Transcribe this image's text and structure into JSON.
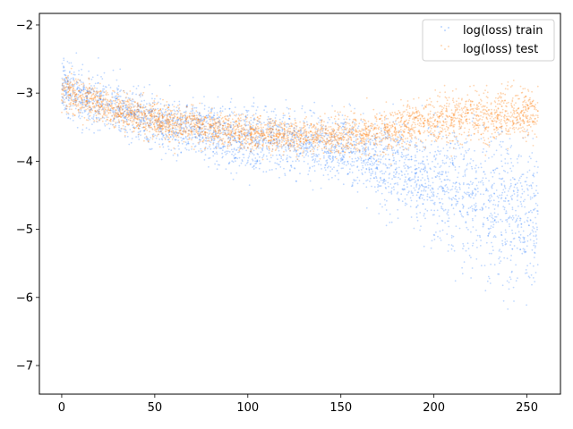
{
  "chart_data": {
    "type": "scatter",
    "title": "",
    "xlabel": "",
    "ylabel": "",
    "xlim": [
      -12,
      268
    ],
    "ylim": [
      -7.42,
      -1.83
    ],
    "xticks": [
      0,
      50,
      100,
      150,
      200,
      250
    ],
    "yticks": [
      -2,
      -3,
      -4,
      -5,
      -6,
      -7
    ],
    "x_tick_labels": [
      "0",
      "50",
      "100",
      "150",
      "200",
      "250"
    ],
    "y_tick_labels": [
      "−2",
      "−3",
      "−4",
      "−5",
      "−6",
      "−7"
    ],
    "grid": false,
    "legend_position": "top-right",
    "series": [
      {
        "name": "log(loss) train",
        "color": "#1f77ff",
        "x_range": [
          0,
          256
        ],
        "center_trend": [
          [
            0,
            -2.9
          ],
          [
            25,
            -3.2
          ],
          [
            50,
            -3.45
          ],
          [
            100,
            -3.65
          ],
          [
            150,
            -3.8
          ],
          [
            175,
            -4.0
          ],
          [
            200,
            -4.3
          ],
          [
            225,
            -4.6
          ],
          [
            256,
            -4.85
          ]
        ],
        "spread_lower_trend": [
          [
            0,
            -3.3
          ],
          [
            50,
            -3.9
          ],
          [
            100,
            -4.3
          ],
          [
            150,
            -4.4
          ],
          [
            200,
            -5.3
          ],
          [
            256,
            -6.4
          ]
        ],
        "spread_upper_trend": [
          [
            0,
            -2.4
          ],
          [
            50,
            -3.1
          ],
          [
            100,
            -3.3
          ],
          [
            150,
            -3.4
          ],
          [
            200,
            -3.4
          ],
          [
            256,
            -3.7
          ]
        ]
      },
      {
        "name": "log(loss) test",
        "color": "#ff7f0e",
        "x_range": [
          0,
          256
        ],
        "center_trend": [
          [
            0,
            -2.95
          ],
          [
            25,
            -3.2
          ],
          [
            50,
            -3.4
          ],
          [
            100,
            -3.6
          ],
          [
            150,
            -3.65
          ],
          [
            175,
            -3.55
          ],
          [
            200,
            -3.4
          ],
          [
            225,
            -3.35
          ],
          [
            256,
            -3.3
          ]
        ],
        "spread_lower_trend": [
          [
            0,
            -3.2
          ],
          [
            50,
            -3.7
          ],
          [
            100,
            -3.85
          ],
          [
            150,
            -3.85
          ],
          [
            200,
            -3.75
          ],
          [
            256,
            -3.75
          ]
        ],
        "spread_upper_trend": [
          [
            0,
            -2.6
          ],
          [
            50,
            -3.1
          ],
          [
            100,
            -3.3
          ],
          [
            150,
            -3.3
          ],
          [
            200,
            -2.95
          ],
          [
            256,
            -2.9
          ]
        ]
      }
    ]
  }
}
